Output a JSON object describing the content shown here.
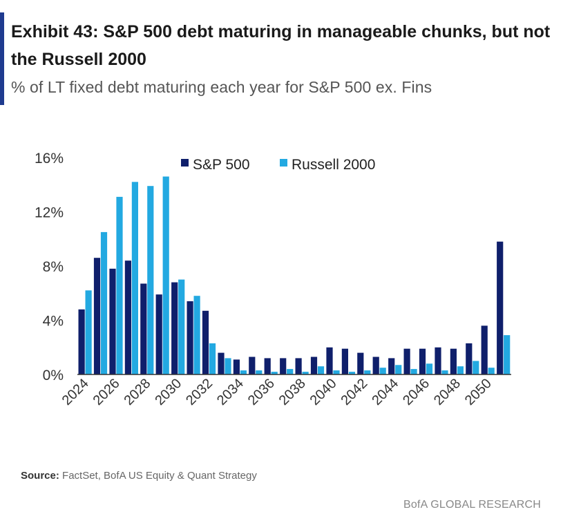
{
  "header": {
    "title": "Exhibit 43: S&P 500 debt maturing in manageable chunks, but not the Russell 2000",
    "subtitle": "% of LT fixed debt maturing each year for S&P 500 ex. Fins"
  },
  "footer": {
    "source_label": "Source:",
    "source_text": " FactSet, BofA US Equity & Quant Strategy",
    "brand": "BofA GLOBAL RESEARCH"
  },
  "colors": {
    "accent": "#1f3b8f",
    "sp500": "#0f1f6b",
    "russell": "#23a9e1"
  },
  "chart_data": {
    "type": "bar",
    "title": "",
    "xlabel": "",
    "ylabel": "",
    "ylim": [
      0,
      16
    ],
    "yticks": [
      0,
      4,
      8,
      12,
      16
    ],
    "ytick_labels": [
      "0%",
      "4%",
      "8%",
      "12%",
      "16%"
    ],
    "legend_position": "top",
    "categories": [
      "2024",
      "2025",
      "2026",
      "2027",
      "2028",
      "2029",
      "2030",
      "2031",
      "2032",
      "2033",
      "2034",
      "2035",
      "2036",
      "2037",
      "2038",
      "2039",
      "2040",
      "2041",
      "2042",
      "2043",
      "2044",
      "2045",
      "2046",
      "2047",
      "2048",
      "2049",
      "2050",
      "2051"
    ],
    "xtick_labels": [
      "2024",
      "2026",
      "2028",
      "2030",
      "2032",
      "2034",
      "2036",
      "2038",
      "2040",
      "2042",
      "2044",
      "2046",
      "2048",
      "2050"
    ],
    "series": [
      {
        "name": "S&P 500",
        "values": [
          4.8,
          8.6,
          7.8,
          8.4,
          6.7,
          5.9,
          6.8,
          5.4,
          4.7,
          1.6,
          1.1,
          1.3,
          1.2,
          1.2,
          1.2,
          1.3,
          2.0,
          1.9,
          1.6,
          1.3,
          1.2,
          1.9,
          1.9,
          2.0,
          1.9,
          2.3,
          3.6,
          9.8
        ]
      },
      {
        "name": "Russell 2000",
        "values": [
          6.2,
          10.5,
          13.1,
          14.2,
          13.9,
          14.6,
          7.0,
          5.8,
          2.3,
          1.2,
          0.3,
          0.3,
          0.2,
          0.4,
          0.2,
          0.6,
          0.3,
          0.2,
          0.3,
          0.5,
          0.7,
          0.4,
          0.8,
          0.3,
          0.6,
          1.0,
          0.5,
          2.9
        ]
      }
    ]
  }
}
